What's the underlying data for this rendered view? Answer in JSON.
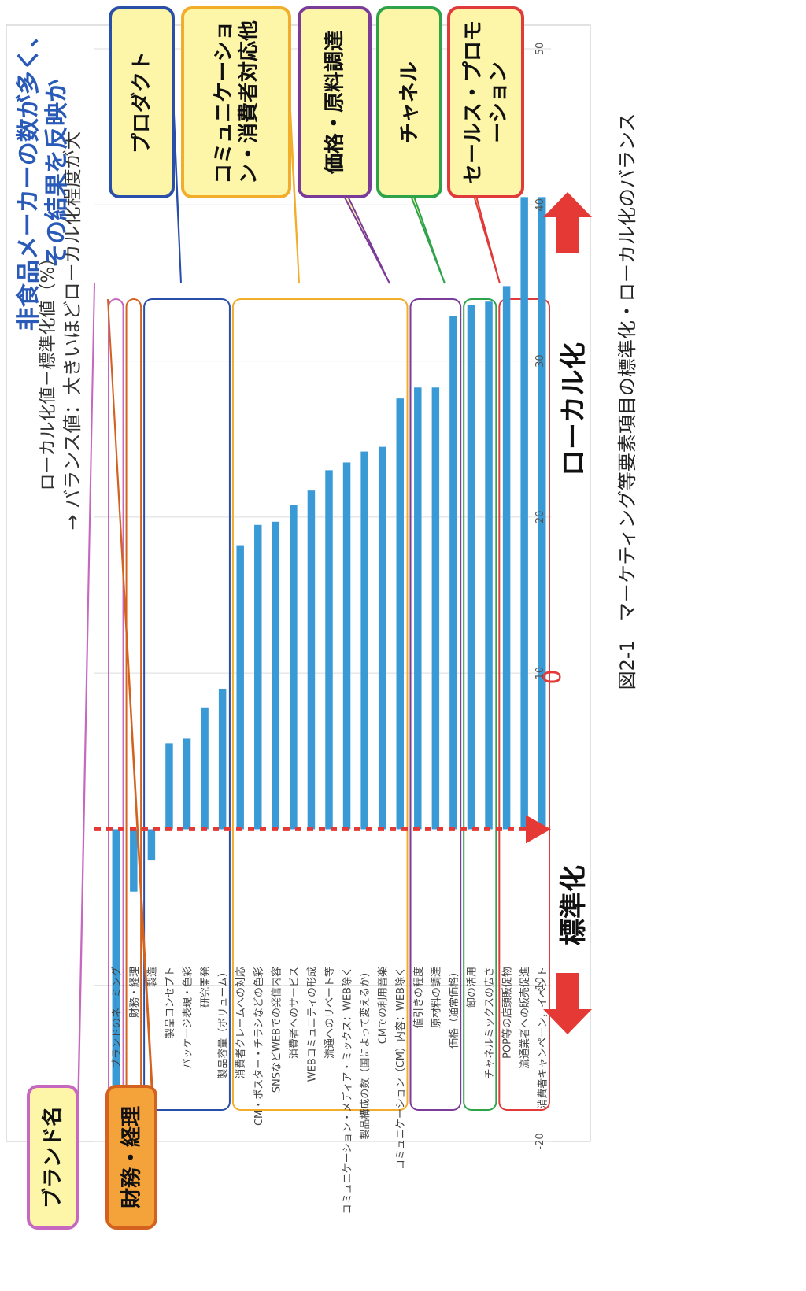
{
  "chart_data": {
    "type": "bar",
    "orientation": "horizontal",
    "xlabel_line1": "ローカル化値－標準化値（%）",
    "xlabel_line2": "→ バランス値：大きいほどローカル化程度が大",
    "xlim": [
      -20,
      50
    ],
    "xticks": [
      "-20",
      "-10",
      "0",
      "10",
      "20",
      "30",
      "40",
      "50"
    ],
    "xtick_values": [
      -20,
      -10,
      0,
      10,
      20,
      30,
      40,
      50
    ],
    "grid": true,
    "bar_color": "#3a9ad6",
    "categories": [
      "ブランドのネーミング",
      "財務・経理",
      "製造",
      "製品コンセプト",
      "パッケージ表現・色彩",
      "研究開発",
      "製品容量（ボリューム）",
      "消費者クレームへの対応",
      "CM・ポスター・チラシなどの色彩",
      "SNSなどWEBでの発信内容",
      "消費者へのサービス",
      "WEBコミュニティの形成",
      "流通へのリベート等",
      "コミュニケーション・メディア・ミックス：WEB除く",
      "製品構成の数（国によって変えるか）",
      "CMでの利用音楽",
      "コミュニケーション（CM）内容：WEB除く",
      "値引きの程度",
      "原材料の調達",
      "価格（通常価格）",
      "卸の活用",
      "チャネルミックスの広さ",
      "POP等の店頭販促物",
      "流通業者への販売促進",
      "消費者キャンペーン，イベント"
    ],
    "values": [
      -19.5,
      -4,
      -2,
      5.5,
      5.8,
      7.8,
      9.0,
      18.2,
      19.5,
      19.7,
      20.8,
      21.7,
      23.0,
      23.5,
      24.2,
      24.5,
      27.6,
      28.3,
      28.3,
      32.9,
      33.6,
      33.8,
      34.8,
      40.5,
      40.5
    ]
  },
  "zero_label": "0",
  "direction_labels": {
    "localization": "ローカル化",
    "standardization": "標準化"
  },
  "annotation_top": "非食品メーカーの数が多く、その結果を反映か",
  "caption": "図2-1　マーケティング等要素項目の標準化・ローカル化のバランス",
  "groups": [
    {
      "label": "ブランド名",
      "color": "#c668c0",
      "fill": "#fdf6a8",
      "from": 0,
      "to": 0
    },
    {
      "label": "財務・経理",
      "color": "#d4621f",
      "fill": "#f4a23a",
      "from": 1,
      "to": 1
    },
    {
      "label": "プロダクト",
      "color": "#2a4fa8",
      "fill": "#fdf6a8",
      "from": 2,
      "to": 6
    },
    {
      "label": "コミュニケーション・消費者対応他",
      "color": "#f2ad2a",
      "fill": "#fdf6a8",
      "from": 7,
      "to": 16
    },
    {
      "label": "価格・原料調達",
      "color": "#7a3c98",
      "fill": "#fdf6a8",
      "from": 17,
      "to": 19
    },
    {
      "label": "チャネル",
      "color": "#2ea34a",
      "fill": "#fdf6a8",
      "from": 20,
      "to": 21
    },
    {
      "label": "セールス・プロモーション",
      "color": "#e03a3a",
      "fill": "#fdf6a8",
      "from": 22,
      "to": 24
    }
  ],
  "colors": {
    "arrow_red": "#e53935",
    "zero_line": "#e53935",
    "annotation_blue": "#2a5ab8"
  }
}
